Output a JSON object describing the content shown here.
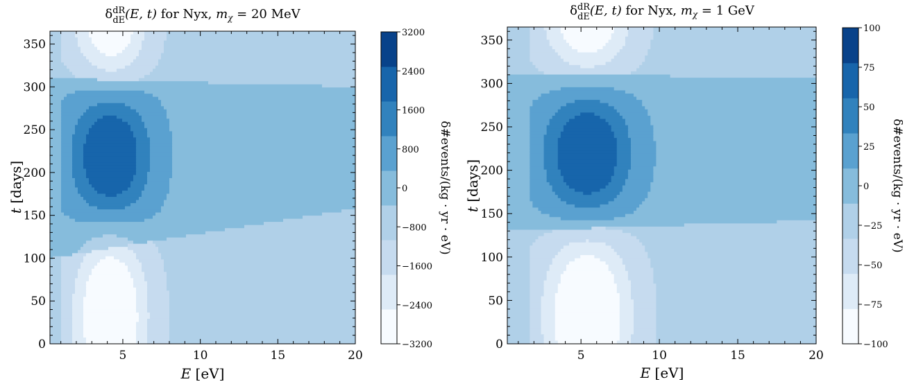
{
  "chart_data": [
    {
      "type": "contour",
      "title": "δ dR/dE(E,t) for Nyx, mχ = 20 MeV",
      "title_parts": {
        "prefix": "δ",
        "frac_num": "dR",
        "frac_den": "dE",
        "args": "(E, t)",
        "mid": " for Nyx, ",
        "mass_var": "m",
        "mass_sub": "χ",
        "mass_eq": " = 20 MeV"
      },
      "xlabel": "E [eV]",
      "xlabel_parts": {
        "var": "E",
        "unit": " [eV]"
      },
      "ylabel": "t [days]",
      "ylabel_parts": {
        "var": "t",
        "unit": " [days]"
      },
      "xlim": [
        0.3,
        20
      ],
      "ylim": [
        0,
        365
      ],
      "xticks": [
        "5",
        "10",
        "15",
        "20"
      ],
      "yticks": [
        "0",
        "50",
        "100",
        "150",
        "200",
        "250",
        "300",
        "350"
      ],
      "colorbar_label": "δ#events/(kg · yr · eV)",
      "colorbar_ticks": [
        "−3200",
        "−2400",
        "−1600",
        "−800",
        "0",
        "800",
        "1600",
        "2400",
        "3200"
      ],
      "levels": [
        -3200,
        -2400,
        -1600,
        -800,
        0,
        800,
        1600,
        2400,
        3200
      ],
      "model": {
        "peak_E": 4.2,
        "peak_t": 220,
        "trough_t": 35,
        "amp_pos": 3500,
        "amp_neg": 3300,
        "sigE_pos": 1.7,
        "sigT_pos": 62,
        "sigE_neg": 1.6,
        "sigT_neg": 80,
        "background": 600,
        "band_lo": [
          100,
          158
        ],
        "band_hi": [
          310,
          300
        ],
        "edge_E": 1.0
      }
    },
    {
      "type": "contour",
      "title": "δ dR/dE(E,t) for Nyx, mχ = 1 GeV",
      "title_parts": {
        "prefix": "δ",
        "frac_num": "dR",
        "frac_den": "dE",
        "args": "(E, t)",
        "mid": " for Nyx, ",
        "mass_var": "m",
        "mass_sub": "χ",
        "mass_eq": " = 1 GeV"
      },
      "xlabel": "E [eV]",
      "xlabel_parts": {
        "var": "E",
        "unit": " [eV]"
      },
      "ylabel": "t [days]",
      "ylabel_parts": {
        "var": "t",
        "unit": " [days]"
      },
      "xlim": [
        0.3,
        20
      ],
      "ylim": [
        0,
        365
      ],
      "xticks": [
        "5",
        "10",
        "15",
        "20"
      ],
      "yticks": [
        "0",
        "50",
        "100",
        "150",
        "200",
        "250",
        "300",
        "350"
      ],
      "colorbar_label": "δ#events/(kg · yr · eV)",
      "colorbar_ticks": [
        "−100",
        "−75",
        "−50",
        "−25",
        "0",
        "25",
        "50",
        "75",
        "100"
      ],
      "levels": [
        -100,
        -75,
        -50,
        -25,
        0,
        25,
        50,
        75,
        100
      ],
      "model": {
        "peak_E": 5.4,
        "peak_t": 220,
        "trough_t": 35,
        "amp_pos": 110,
        "amp_neg": 105,
        "sigE_pos": 1.9,
        "sigT_pos": 62,
        "sigE_neg": 1.9,
        "sigT_neg": 80,
        "background": 18,
        "band_lo": [
          130,
          142
        ],
        "band_hi": [
          310,
          307
        ],
        "edge_E": 1.7
      }
    }
  ],
  "colors": [
    "#f7fbff",
    "#deebf7",
    "#c6dbef",
    "#b0d0e8",
    "#86bcdc",
    "#5aa1d0",
    "#3182bd",
    "#1765ab",
    "#08428a"
  ]
}
